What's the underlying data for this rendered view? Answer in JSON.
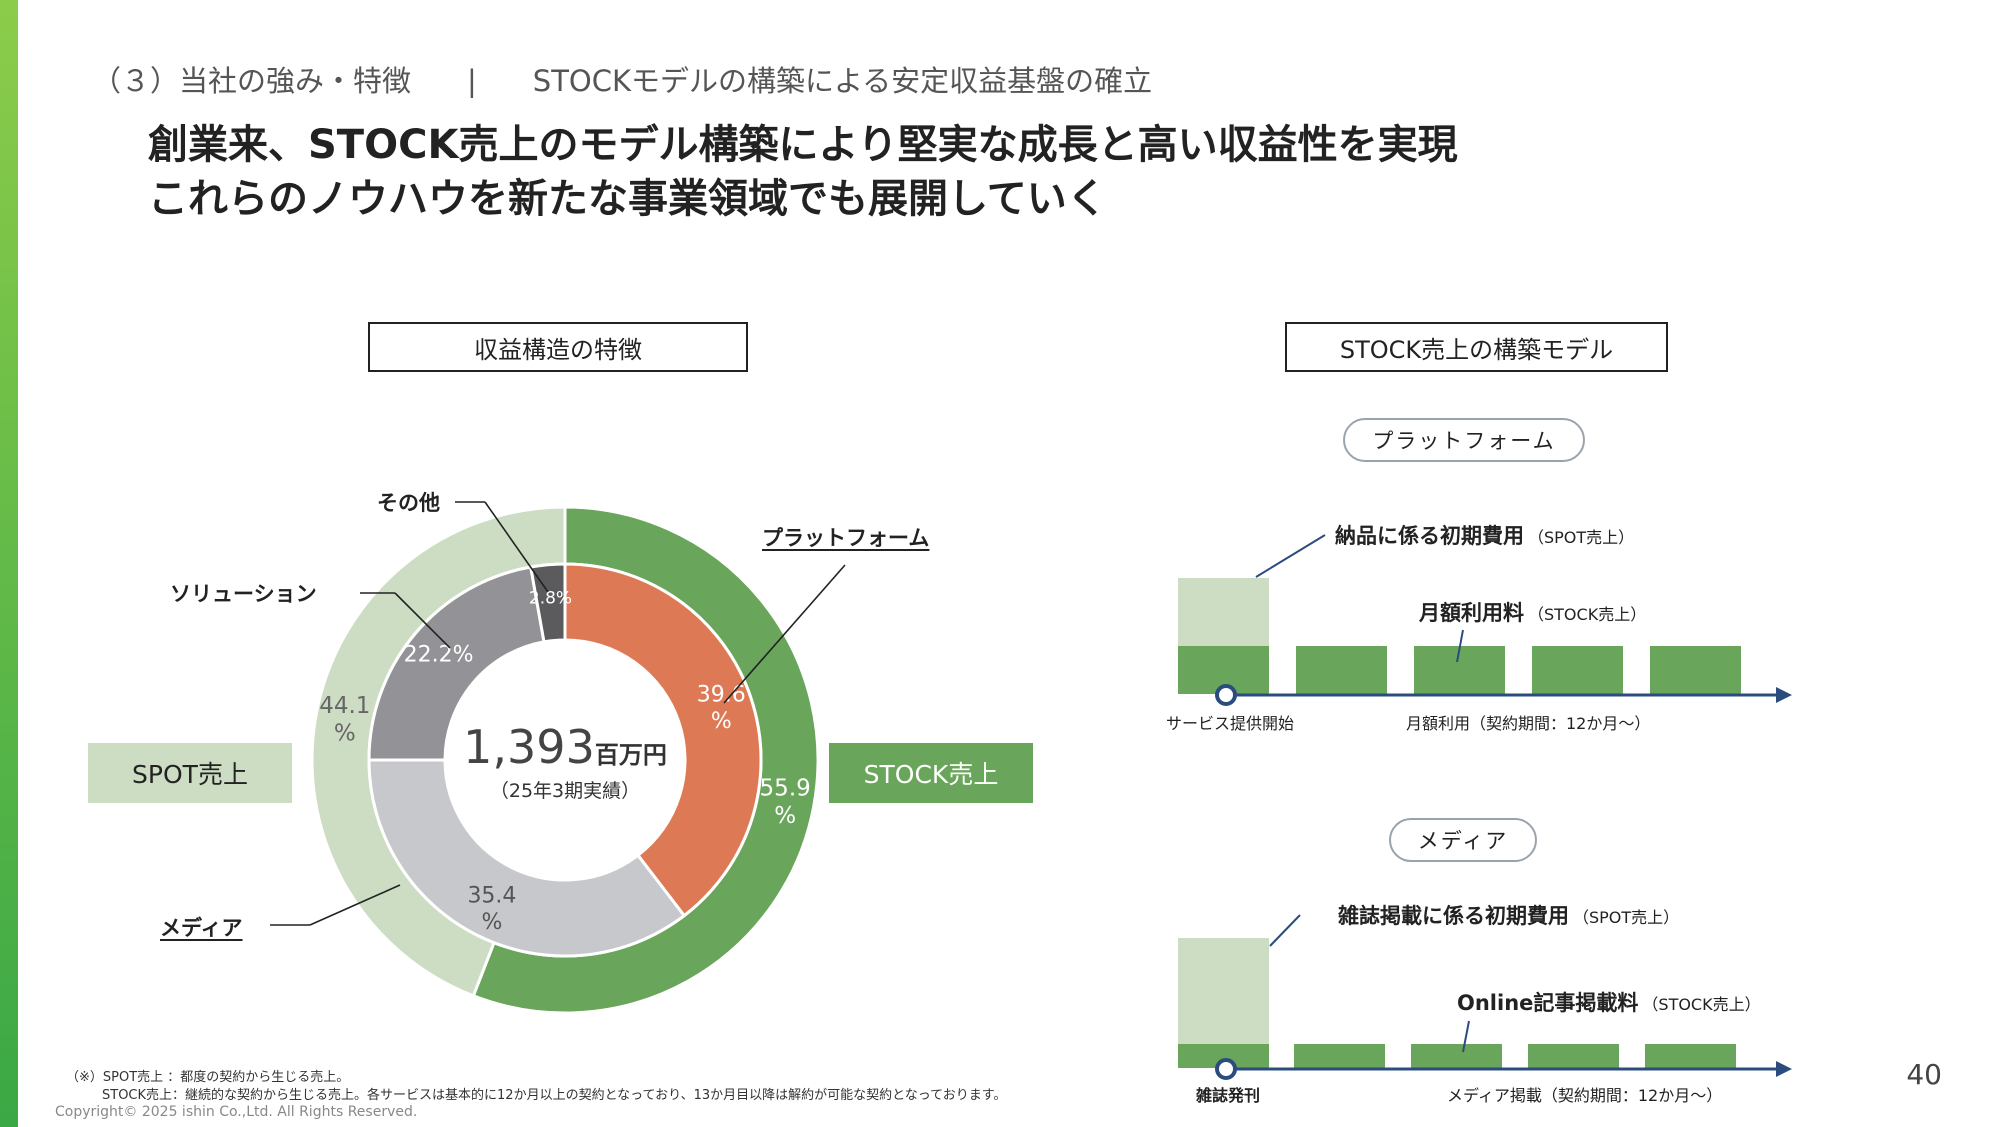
{
  "header": {
    "section": "（３）当社の強み・特徴",
    "separator": "|",
    "topic": "STOCKモデルの構築による安定収益基盤の確立",
    "headline_line1": "創業来、STOCK売上のモデル構築により堅実な成長と高い収益性を実現",
    "headline_line2": "これらのノウハウを新たな事業領域でも展開していく"
  },
  "left_panel": {
    "title": "収益構造の特徴",
    "spot_label": "SPOT売上",
    "stock_label": "STOCK売上",
    "center_value": "1,393",
    "center_unit": "百万円",
    "center_sub": "（25年3期実績）",
    "callouts": {
      "other": "その他",
      "solution": "ソリューション",
      "platform": "プラットフォーム",
      "media": "メディア"
    }
  },
  "chart_data": {
    "type": "donut",
    "total": 1393,
    "total_unit": "百万円",
    "outer_ring": [
      {
        "name": "STOCK売上",
        "value": 55.9,
        "label": "55.9\n%",
        "color": "#69a55a"
      },
      {
        "name": "SPOT売上",
        "value": 44.1,
        "label": "44.1\n%",
        "color": "#cdddc4"
      }
    ],
    "inner_ring": [
      {
        "name": "プラットフォーム",
        "value": 39.6,
        "label": "39.6\n%",
        "color": "#dd7a55"
      },
      {
        "name": "メディア",
        "value": 35.4,
        "label": "35.4\n%",
        "color": "#c7c8cb"
      },
      {
        "name": "ソリューション",
        "value": 22.2,
        "label": "22.2%",
        "color": "#939397"
      },
      {
        "name": "その他",
        "value": 2.8,
        "label": "2.8%",
        "color": "#5b5b5e"
      }
    ]
  },
  "right_panel": {
    "title": "STOCK売上の構築モデル",
    "platform": {
      "pill": "プラットフォーム",
      "initial_fee": "納品に係る初期費用",
      "initial_fee_note": "（SPOT売上）",
      "monthly_fee": "月額利用料",
      "monthly_fee_note": "（STOCK売上）",
      "start_label": "サービス提供開始",
      "period_label": "月額利用（契約期間：12か月～）"
    },
    "media": {
      "pill": "メディア",
      "initial_fee": "雑誌掲載に係る初期費用",
      "initial_fee_note": "（SPOT売上）",
      "monthly_fee": "Online記事掲載料",
      "monthly_fee_note": "（STOCK売上）",
      "start_label": "雑誌発刊",
      "period_label": "メディア掲載（契約期間：12か月～）"
    },
    "colors": {
      "spot": "#cdddc4",
      "stock": "#69a55a",
      "axis": "#2b4c7e"
    }
  },
  "footer": {
    "note1": "（※）SPOT売上 ：都度の契約から生じる売上。",
    "note2": "STOCK売上：継続的な契約から生じる売上。各サービスは基本的に12か月以上の契約となっており、13か月目以降は解約が可能な契約となっております。",
    "copyright": "Copyright© 2025 ishin Co.,Ltd. All Rights Reserved.",
    "page": "40"
  }
}
